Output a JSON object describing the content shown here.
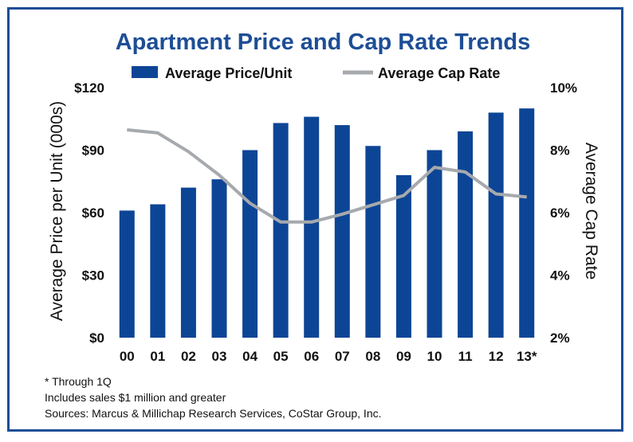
{
  "chart_data": {
    "type": "bar+line",
    "title": "Apartment Price and Cap Rate Trends",
    "categories": [
      "00",
      "01",
      "02",
      "03",
      "04",
      "05",
      "06",
      "07",
      "08",
      "09",
      "10",
      "11",
      "12",
      "13*"
    ],
    "series": [
      {
        "name": "Average Price/Unit",
        "type": "bar",
        "axis": "left",
        "color": "#0d4596",
        "values": [
          61,
          64,
          72,
          76,
          90,
          103,
          106,
          102,
          92,
          78,
          90,
          99,
          108,
          110
        ]
      },
      {
        "name": "Average Cap Rate",
        "type": "line",
        "axis": "right",
        "color": "#a6a9ad",
        "values": [
          8.65,
          8.55,
          7.95,
          7.2,
          6.3,
          5.7,
          5.7,
          5.95,
          6.25,
          6.55,
          7.45,
          7.3,
          6.6,
          6.5
        ]
      }
    ],
    "left_axis": {
      "label": "Average Price per Unit (000s)",
      "range": [
        0,
        120
      ],
      "ticks": [
        0,
        30,
        60,
        90,
        120
      ],
      "tick_labels": [
        "$0",
        "$30",
        "$60",
        "$90",
        "$120"
      ]
    },
    "right_axis": {
      "label": "Average Cap Rate",
      "range": [
        2,
        10
      ],
      "ticks": [
        2,
        4,
        6,
        8,
        10
      ],
      "tick_labels": [
        "2%",
        "4%",
        "6%",
        "8%",
        "10%"
      ]
    },
    "legend": [
      "Average Price/Unit",
      "Average Cap Rate"
    ],
    "legend_placement": "top-center",
    "grid": false
  },
  "notes": [
    "* Through 1Q",
    "Includes sales $1 million and greater",
    "Sources: Marcus & Millichap Research Services, CoStar Group, Inc."
  ],
  "colors": {
    "frame": "#1d4e96",
    "title": "#1d4e96",
    "bar": "#0d4596",
    "line": "#a6a9ad"
  }
}
